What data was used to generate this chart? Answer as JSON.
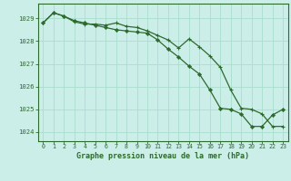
{
  "title": "Graphe pression niveau de la mer (hPa)",
  "background_color": "#cceee8",
  "grid_color": "#aaddcc",
  "line_color": "#2d6a2d",
  "xlim": [
    -0.5,
    23.5
  ],
  "ylim": [
    1023.6,
    1029.65
  ],
  "yticks": [
    1024,
    1025,
    1026,
    1027,
    1028,
    1029
  ],
  "xticks": [
    0,
    1,
    2,
    3,
    4,
    5,
    6,
    7,
    8,
    9,
    10,
    11,
    12,
    13,
    14,
    15,
    16,
    17,
    18,
    19,
    20,
    21,
    22,
    23
  ],
  "series1_x": [
    0,
    1,
    2,
    3,
    4,
    5,
    6,
    7,
    8,
    9,
    10,
    11,
    12,
    13,
    14,
    15,
    16,
    17,
    18,
    19,
    20,
    21,
    22,
    23
  ],
  "series1_y": [
    1028.8,
    1029.25,
    1029.1,
    1028.9,
    1028.8,
    1028.7,
    1028.6,
    1028.5,
    1028.45,
    1028.4,
    1028.35,
    1028.05,
    1027.65,
    1027.3,
    1026.9,
    1026.55,
    1025.85,
    1025.05,
    1025.0,
    1024.8,
    1024.25,
    1024.25,
    1024.75,
    1025.0
  ],
  "series2_x": [
    0,
    1,
    2,
    3,
    4,
    5,
    6,
    7,
    8,
    9,
    10,
    11,
    12,
    13,
    14,
    15,
    16,
    17,
    18,
    19,
    20,
    21,
    22,
    23
  ],
  "series2_y": [
    1028.8,
    1029.25,
    1029.1,
    1028.85,
    1028.75,
    1028.75,
    1028.7,
    1028.8,
    1028.65,
    1028.6,
    1028.45,
    1028.25,
    1028.05,
    1027.7,
    1028.1,
    1027.75,
    1027.35,
    1026.85,
    1025.85,
    1025.05,
    1025.0,
    1024.8,
    1024.25,
    1024.25
  ]
}
